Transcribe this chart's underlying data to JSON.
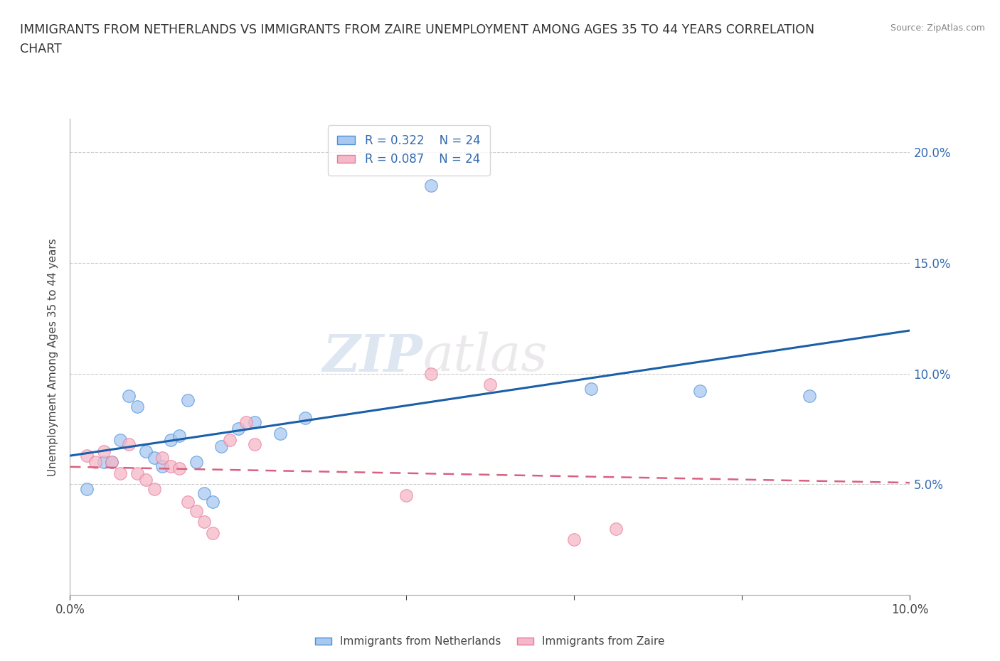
{
  "title_line1": "IMMIGRANTS FROM NETHERLANDS VS IMMIGRANTS FROM ZAIRE UNEMPLOYMENT AMONG AGES 35 TO 44 YEARS CORRELATION",
  "title_line2": "CHART",
  "source_text": "Source: ZipAtlas.com",
  "ylabel": "Unemployment Among Ages 35 to 44 years",
  "xlim": [
    0.0,
    0.1
  ],
  "ylim": [
    0.0,
    0.215
  ],
  "watermark_zip": "ZIP",
  "watermark_atlas": "atlas",
  "legend_r1": "R = 0.322",
  "legend_n1": "N = 24",
  "legend_r2": "R = 0.087",
  "legend_n2": "N = 24",
  "netherlands_color": "#a8c8f0",
  "zaire_color": "#f5b8c8",
  "netherlands_edge_color": "#4a90d9",
  "zaire_edge_color": "#e87a9a",
  "netherlands_line_color": "#1a5fa8",
  "zaire_line_color": "#d96080",
  "grid_color": "#cccccc",
  "netherlands_x": [
    0.002,
    0.004,
    0.005,
    0.006,
    0.007,
    0.008,
    0.009,
    0.01,
    0.011,
    0.012,
    0.013,
    0.014,
    0.015,
    0.016,
    0.017,
    0.018,
    0.02,
    0.022,
    0.025,
    0.028,
    0.043,
    0.062,
    0.075,
    0.088
  ],
  "netherlands_y": [
    0.048,
    0.06,
    0.06,
    0.07,
    0.09,
    0.085,
    0.065,
    0.062,
    0.058,
    0.07,
    0.072,
    0.088,
    0.06,
    0.046,
    0.042,
    0.067,
    0.075,
    0.078,
    0.073,
    0.08,
    0.185,
    0.093,
    0.092,
    0.09
  ],
  "zaire_x": [
    0.002,
    0.003,
    0.004,
    0.005,
    0.006,
    0.007,
    0.008,
    0.009,
    0.01,
    0.011,
    0.012,
    0.013,
    0.014,
    0.015,
    0.016,
    0.017,
    0.019,
    0.021,
    0.022,
    0.04,
    0.043,
    0.05,
    0.06,
    0.065
  ],
  "zaire_y": [
    0.063,
    0.06,
    0.065,
    0.06,
    0.055,
    0.068,
    0.055,
    0.052,
    0.048,
    0.062,
    0.058,
    0.057,
    0.042,
    0.038,
    0.033,
    0.028,
    0.07,
    0.078,
    0.068,
    0.045,
    0.1,
    0.095,
    0.025,
    0.03
  ]
}
